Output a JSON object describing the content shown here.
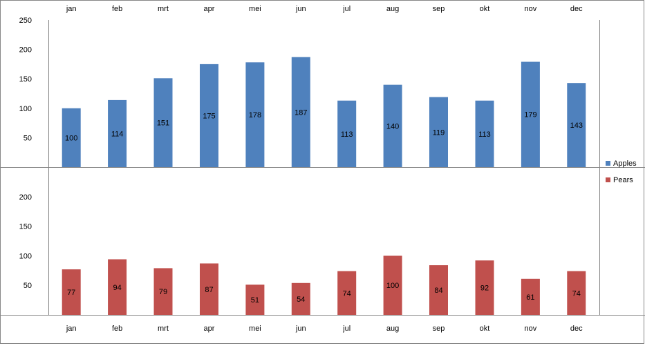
{
  "chart_data": {
    "type": "bar",
    "categories": [
      "jan",
      "feb",
      "mrt",
      "apr",
      "mei",
      "jun",
      "jul",
      "aug",
      "sep",
      "okt",
      "nov",
      "dec"
    ],
    "series": [
      {
        "name": "Apples",
        "color": "#4f81bd",
        "values": [
          100,
          114,
          151,
          175,
          178,
          187,
          113,
          140,
          119,
          113,
          179,
          143
        ],
        "ylim": [
          0,
          250
        ],
        "yticks": [
          50,
          100,
          150,
          200,
          250
        ]
      },
      {
        "name": "Pears",
        "color": "#c0504d",
        "values": [
          77,
          94,
          79,
          87,
          51,
          54,
          74,
          100,
          84,
          92,
          61,
          74
        ],
        "ylim": [
          0,
          250
        ],
        "yticks": [
          50,
          100,
          150,
          200
        ]
      }
    ],
    "title": "",
    "xlabel": "",
    "ylabel": "",
    "legend_position": "right",
    "category_labels_position": "top-and-bottom",
    "gridlines": false,
    "data_labels": true
  }
}
